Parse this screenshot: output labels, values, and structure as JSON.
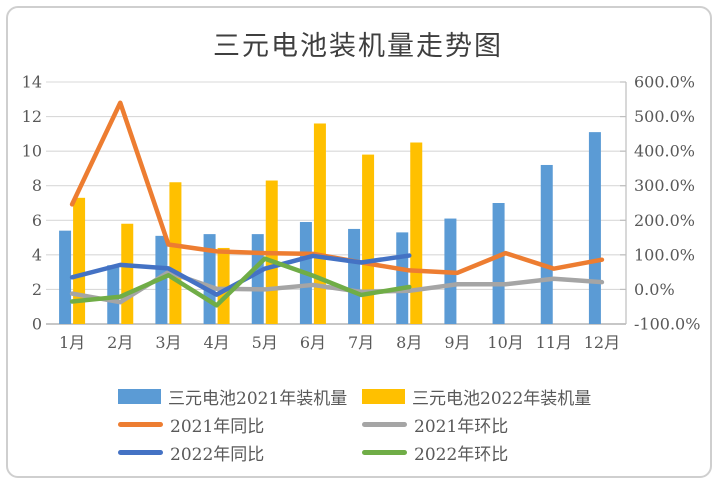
{
  "chart_data": {
    "type": "combo-bar-line",
    "title": "三元电池装机量走势图",
    "categories": [
      "1月",
      "2月",
      "3月",
      "4月",
      "5月",
      "6月",
      "7月",
      "8月",
      "9月",
      "10月",
      "11月",
      "12月"
    ],
    "left_axis": {
      "min": 0,
      "max": 14,
      "step": 2,
      "ticks": [
        "0",
        "2",
        "4",
        "6",
        "8",
        "10",
        "12",
        "14"
      ]
    },
    "right_axis": {
      "min": -100,
      "max": 600,
      "step": 100,
      "ticks": [
        "-100.0%",
        "0.0%",
        "100.0%",
        "200.0%",
        "300.0%",
        "400.0%",
        "500.0%",
        "600.0%"
      ]
    },
    "grid": true,
    "legend_position": "bottom",
    "bar_series": [
      {
        "name": "三元电池2021年装机量",
        "color": "#5B9BD5",
        "axis": "left",
        "values": [
          5.4,
          3.4,
          5.1,
          5.2,
          5.2,
          5.9,
          5.5,
          5.3,
          6.1,
          7.0,
          9.2,
          11.1
        ]
      },
      {
        "name": "三元电池2022年装机量",
        "color": "#FFC000",
        "axis": "left",
        "values": [
          7.3,
          5.8,
          8.2,
          4.4,
          8.3,
          11.6,
          9.8,
          10.5
        ]
      }
    ],
    "line_series": [
      {
        "name": "2021年同比",
        "color": "#ED7D31",
        "axis": "right",
        "values_pct": [
          246,
          540,
          130,
          110,
          105,
          103,
          78,
          55,
          48,
          105,
          60,
          86
        ]
      },
      {
        "name": "2021年环比",
        "color": "#A5A5A5",
        "axis": "right",
        "values_pct": [
          -12,
          -37,
          50,
          2,
          0,
          13,
          -7,
          -4,
          15,
          15,
          31,
          21
        ]
      },
      {
        "name": "2022年同比",
        "color": "#4472C4",
        "axis": "right",
        "values_pct": [
          35,
          71,
          61,
          -15,
          60,
          97,
          78,
          98
        ]
      },
      {
        "name": "2022年环比",
        "color": "#70AD47",
        "axis": "right",
        "values_pct": [
          -35,
          -21,
          41,
          -46,
          89,
          40,
          -16,
          7
        ]
      }
    ]
  }
}
